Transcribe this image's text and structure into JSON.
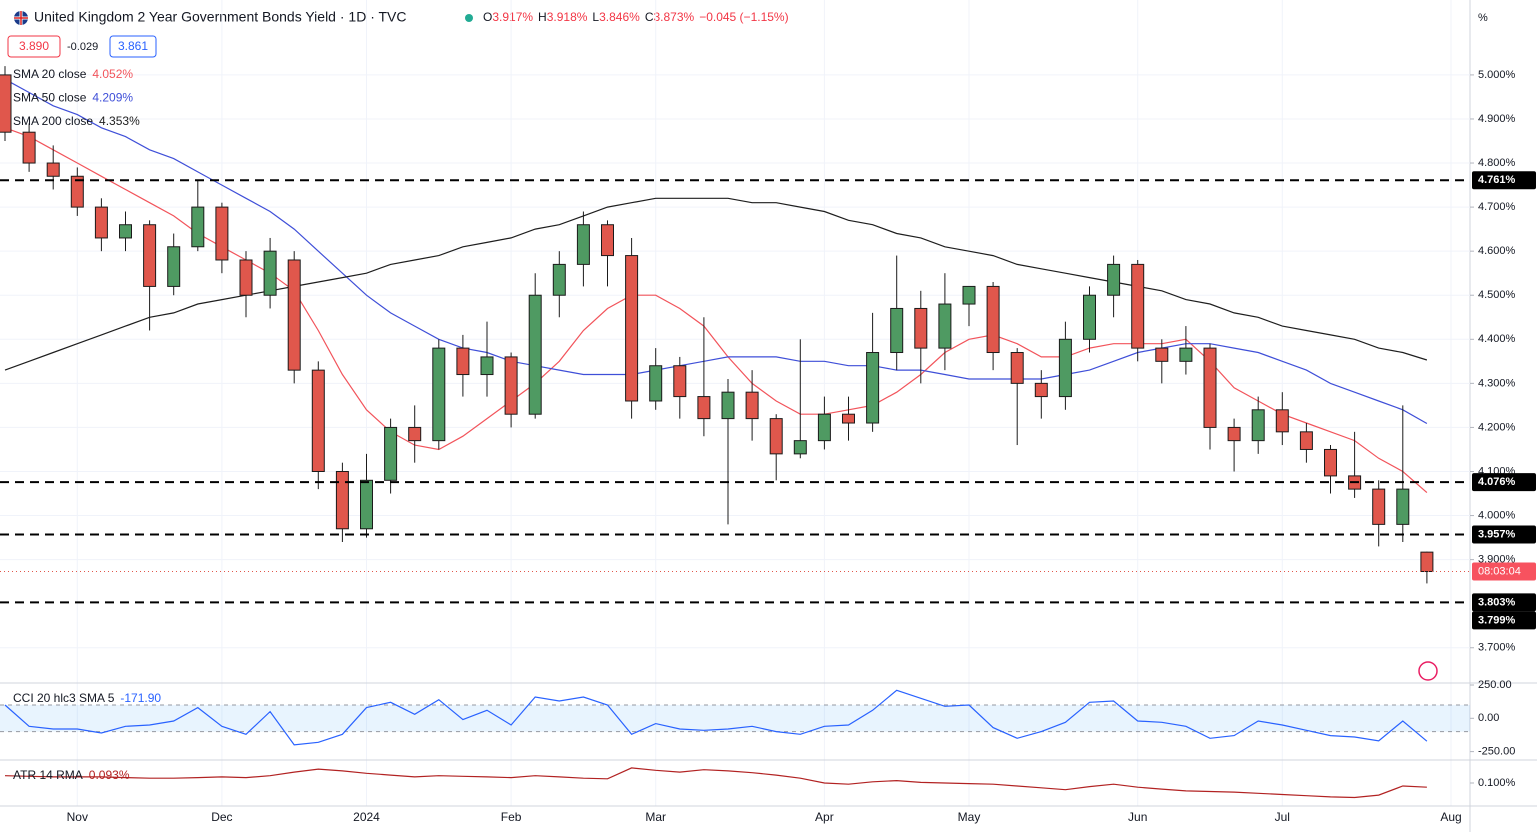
{
  "chart_data": [
    {
      "type": "candlestick",
      "title": "United Kingdom 2 Year Government Bonds Yield · 1D · TVC",
      "ohlc": [
        {
          "label": "O",
          "value": "3.917%"
        },
        {
          "label": "H",
          "value": "3.918%"
        },
        {
          "label": "L",
          "value": "3.846%"
        },
        {
          "label": "C",
          "value": "3.873%"
        }
      ],
      "change": "−0.045 (−1.15%)",
      "quote_boxes": [
        "3.890",
        "-0.029",
        "3.861"
      ],
      "unit": "%",
      "categories": [
        null,
        null,
        null,
        "Nov",
        null,
        null,
        null,
        null,
        null,
        "Dec",
        null,
        null,
        null,
        null,
        null,
        "2024",
        null,
        null,
        null,
        null,
        null,
        "Feb",
        null,
        null,
        null,
        null,
        null,
        "Mar",
        null,
        null,
        null,
        null,
        null,
        null,
        "Apr",
        null,
        null,
        null,
        null,
        null,
        "May",
        null,
        null,
        null,
        null,
        null,
        null,
        "Jun",
        null,
        null,
        null,
        null,
        null,
        "Jul",
        null,
        null,
        null,
        null,
        null,
        null,
        "Aug"
      ],
      "open": [
        5.0,
        4.87,
        4.8,
        4.77,
        4.7,
        4.63,
        4.66,
        4.52,
        4.61,
        4.7,
        4.58,
        4.5,
        4.58,
        4.33,
        4.1,
        3.97,
        4.08,
        4.2,
        4.17,
        4.38,
        4.32,
        4.36,
        4.23,
        4.5,
        4.57,
        4.66,
        4.59,
        4.26,
        4.34,
        4.27,
        4.22,
        4.28,
        4.22,
        4.14,
        4.17,
        4.23,
        4.21,
        4.37,
        4.47,
        4.38,
        4.48,
        4.52,
        4.37,
        4.3,
        4.27,
        4.4,
        4.5,
        4.57,
        4.38,
        4.35,
        4.38,
        4.2,
        4.17,
        4.24,
        4.19,
        4.15,
        4.09,
        4.06,
        3.98,
        3.917,
        null
      ],
      "high": [
        5.02,
        4.89,
        4.84,
        4.79,
        4.72,
        4.69,
        4.67,
        4.64,
        4.76,
        4.71,
        4.6,
        4.63,
        4.6,
        4.35,
        4.12,
        4.14,
        4.22,
        4.25,
        4.4,
        4.41,
        4.44,
        4.37,
        4.55,
        4.6,
        4.69,
        4.67,
        4.63,
        4.38,
        4.36,
        4.45,
        4.31,
        4.33,
        4.23,
        4.4,
        4.27,
        4.27,
        4.46,
        4.59,
        4.51,
        4.55,
        4.52,
        4.53,
        4.38,
        4.33,
        4.44,
        4.52,
        4.59,
        4.58,
        4.4,
        4.43,
        4.39,
        4.22,
        4.27,
        4.28,
        4.21,
        4.16,
        4.19,
        4.08,
        4.25,
        3.918,
        null
      ],
      "low": [
        4.85,
        4.78,
        4.74,
        4.68,
        4.6,
        4.6,
        4.42,
        4.5,
        4.6,
        4.55,
        4.45,
        4.47,
        4.3,
        4.06,
        3.94,
        3.95,
        4.05,
        4.12,
        4.15,
        4.27,
        4.27,
        4.2,
        4.22,
        4.45,
        4.52,
        4.52,
        4.22,
        4.24,
        4.22,
        4.18,
        3.98,
        4.17,
        4.08,
        4.13,
        4.15,
        4.17,
        4.19,
        4.33,
        4.3,
        4.33,
        4.43,
        4.33,
        4.16,
        4.22,
        4.24,
        4.37,
        4.45,
        4.35,
        4.3,
        4.32,
        4.15,
        4.1,
        4.14,
        4.16,
        4.12,
        4.05,
        4.04,
        3.93,
        3.94,
        3.846,
        null
      ],
      "close": [
        4.87,
        4.8,
        4.77,
        4.7,
        4.63,
        4.66,
        4.52,
        4.61,
        4.7,
        4.58,
        4.5,
        4.6,
        4.33,
        4.1,
        3.97,
        4.08,
        4.2,
        4.17,
        4.38,
        4.32,
        4.36,
        4.23,
        4.5,
        4.57,
        4.66,
        4.59,
        4.26,
        4.34,
        4.27,
        4.22,
        4.28,
        4.22,
        4.14,
        4.17,
        4.23,
        4.21,
        4.37,
        4.47,
        4.38,
        4.48,
        4.52,
        4.37,
        4.3,
        4.27,
        4.4,
        4.5,
        4.57,
        4.38,
        4.35,
        4.38,
        4.2,
        4.17,
        4.24,
        4.19,
        4.15,
        4.09,
        4.06,
        3.98,
        4.06,
        3.873,
        null
      ],
      "up_color": "#4f9a62",
      "down_color": "#e0574c",
      "series": [
        {
          "name": "SMA 20 close",
          "color": "#f2545b",
          "legend_value": "4.052%",
          "values": [
            4.88,
            4.86,
            4.83,
            4.8,
            4.77,
            4.74,
            4.71,
            4.68,
            4.64,
            4.61,
            4.58,
            4.55,
            4.51,
            4.42,
            4.32,
            4.24,
            4.19,
            4.16,
            4.15,
            4.18,
            4.22,
            4.26,
            4.3,
            4.35,
            4.42,
            4.47,
            4.5,
            4.5,
            4.47,
            4.43,
            4.36,
            4.3,
            4.26,
            4.23,
            4.23,
            4.24,
            4.25,
            4.28,
            4.32,
            4.37,
            4.4,
            4.41,
            4.39,
            4.36,
            4.36,
            4.38,
            4.39,
            4.39,
            4.39,
            4.4,
            4.35,
            4.29,
            4.26,
            4.23,
            4.21,
            4.19,
            4.17,
            4.13,
            4.1,
            4.052,
            null
          ]
        },
        {
          "name": "SMA 50 close",
          "color": "#3f4fd8",
          "legend_value": "4.209%",
          "values": [
            4.99,
            4.96,
            4.93,
            4.91,
            4.88,
            4.86,
            4.83,
            4.81,
            4.78,
            4.75,
            4.72,
            4.69,
            4.65,
            4.6,
            4.55,
            4.5,
            4.46,
            4.43,
            4.4,
            4.38,
            4.37,
            4.35,
            4.34,
            4.33,
            4.32,
            4.32,
            4.32,
            4.33,
            4.34,
            4.35,
            4.36,
            4.36,
            4.36,
            4.35,
            4.35,
            4.34,
            4.34,
            4.33,
            4.33,
            4.32,
            4.31,
            4.31,
            4.31,
            4.31,
            4.32,
            4.33,
            4.35,
            4.37,
            4.38,
            4.39,
            4.39,
            4.38,
            4.37,
            4.35,
            4.33,
            4.3,
            4.28,
            4.26,
            4.24,
            4.209,
            null
          ]
        },
        {
          "name": "SMA 200 close",
          "color": "#1e1e1e",
          "legend_value": "4.353%",
          "values": [
            4.33,
            4.35,
            4.37,
            4.39,
            4.41,
            4.43,
            4.45,
            4.46,
            4.48,
            4.49,
            4.5,
            4.51,
            4.52,
            4.53,
            4.54,
            4.55,
            4.57,
            4.58,
            4.59,
            4.61,
            4.62,
            4.63,
            4.65,
            4.66,
            4.68,
            4.7,
            4.71,
            4.72,
            4.72,
            4.72,
            4.72,
            4.71,
            4.71,
            4.7,
            4.69,
            4.67,
            4.66,
            4.64,
            4.63,
            4.61,
            4.6,
            4.59,
            4.57,
            4.56,
            4.55,
            4.54,
            4.53,
            4.52,
            4.51,
            4.49,
            4.48,
            4.46,
            4.45,
            4.43,
            4.42,
            4.41,
            4.4,
            4.38,
            4.37,
            4.353,
            null
          ]
        }
      ],
      "ylim": [
        3.62,
        5.17
      ],
      "yticks": [
        {
          "value": 5.0,
          "label": "5.000%"
        },
        {
          "value": 4.9,
          "label": "4.900%"
        },
        {
          "value": 4.8,
          "label": "4.800%"
        },
        {
          "value": 4.7,
          "label": "4.700%"
        },
        {
          "value": 4.6,
          "label": "4.600%"
        },
        {
          "value": 4.5,
          "label": "4.500%"
        },
        {
          "value": 4.4,
          "label": "4.400%"
        },
        {
          "value": 4.3,
          "label": "4.300%"
        },
        {
          "value": 4.2,
          "label": "4.200%"
        },
        {
          "value": 4.1,
          "label": "4.100%"
        },
        {
          "value": 4.0,
          "label": "4.000%"
        },
        {
          "value": 3.9,
          "label": "3.900%"
        },
        {
          "value": 3.7,
          "label": "3.700%"
        }
      ],
      "levels": [
        {
          "value": 4.761,
          "label": "4.761%"
        },
        {
          "value": 4.076,
          "label": "4.076%"
        },
        {
          "value": 3.957,
          "label": "3.957%"
        },
        {
          "value": 3.803,
          "label": "3.803%"
        }
      ],
      "extra_label": {
        "value": 3.799,
        "label": "3.799%"
      },
      "current": {
        "value": 3.873,
        "label": "08:03:04"
      },
      "grid": true
    },
    {
      "type": "line",
      "title": "CCI 20 hlc3 SMA 5",
      "value_label": "-171.90",
      "color": "#2962ff",
      "values": [
        100,
        -60,
        -80,
        -80,
        -110,
        -60,
        -50,
        -20,
        80,
        -60,
        -120,
        50,
        -200,
        -180,
        -120,
        80,
        120,
        30,
        140,
        -10,
        60,
        -50,
        160,
        130,
        160,
        100,
        -120,
        -40,
        -80,
        -90,
        -80,
        -60,
        -100,
        -120,
        -60,
        -50,
        60,
        210,
        150,
        90,
        100,
        -70,
        -150,
        -100,
        -30,
        120,
        130,
        -20,
        -30,
        -60,
        -150,
        -130,
        -20,
        -50,
        -90,
        -130,
        -140,
        -170,
        -20,
        -171.9,
        null
      ],
      "band": [
        -100,
        100
      ],
      "ylim": [
        -313,
        265
      ],
      "yticks": [
        {
          "value": 250,
          "label": "250.00"
        },
        {
          "value": 0,
          "label": "0.00"
        },
        {
          "value": -250,
          "label": "-250.00"
        }
      ]
    },
    {
      "type": "line",
      "title": "ATR 14 RMA",
      "value_label": "0.093%",
      "color": "#b22222",
      "values": [
        0.112,
        0.111,
        0.11,
        0.11,
        0.11,
        0.109,
        0.108,
        0.108,
        0.109,
        0.11,
        0.109,
        0.112,
        0.118,
        0.123,
        0.12,
        0.116,
        0.113,
        0.11,
        0.112,
        0.111,
        0.11,
        0.109,
        0.112,
        0.11,
        0.108,
        0.107,
        0.125,
        0.121,
        0.118,
        0.122,
        0.12,
        0.117,
        0.113,
        0.108,
        0.1,
        0.098,
        0.102,
        0.104,
        0.101,
        0.1,
        0.099,
        0.098,
        0.095,
        0.092,
        0.089,
        0.094,
        0.098,
        0.093,
        0.09,
        0.087,
        0.086,
        0.085,
        0.083,
        0.081,
        0.079,
        0.077,
        0.076,
        0.08,
        0.095,
        0.093,
        null
      ],
      "ylim": [
        0.062,
        0.138
      ],
      "yticks": [
        {
          "value": 0.1,
          "label": "0.100%"
        }
      ]
    }
  ]
}
